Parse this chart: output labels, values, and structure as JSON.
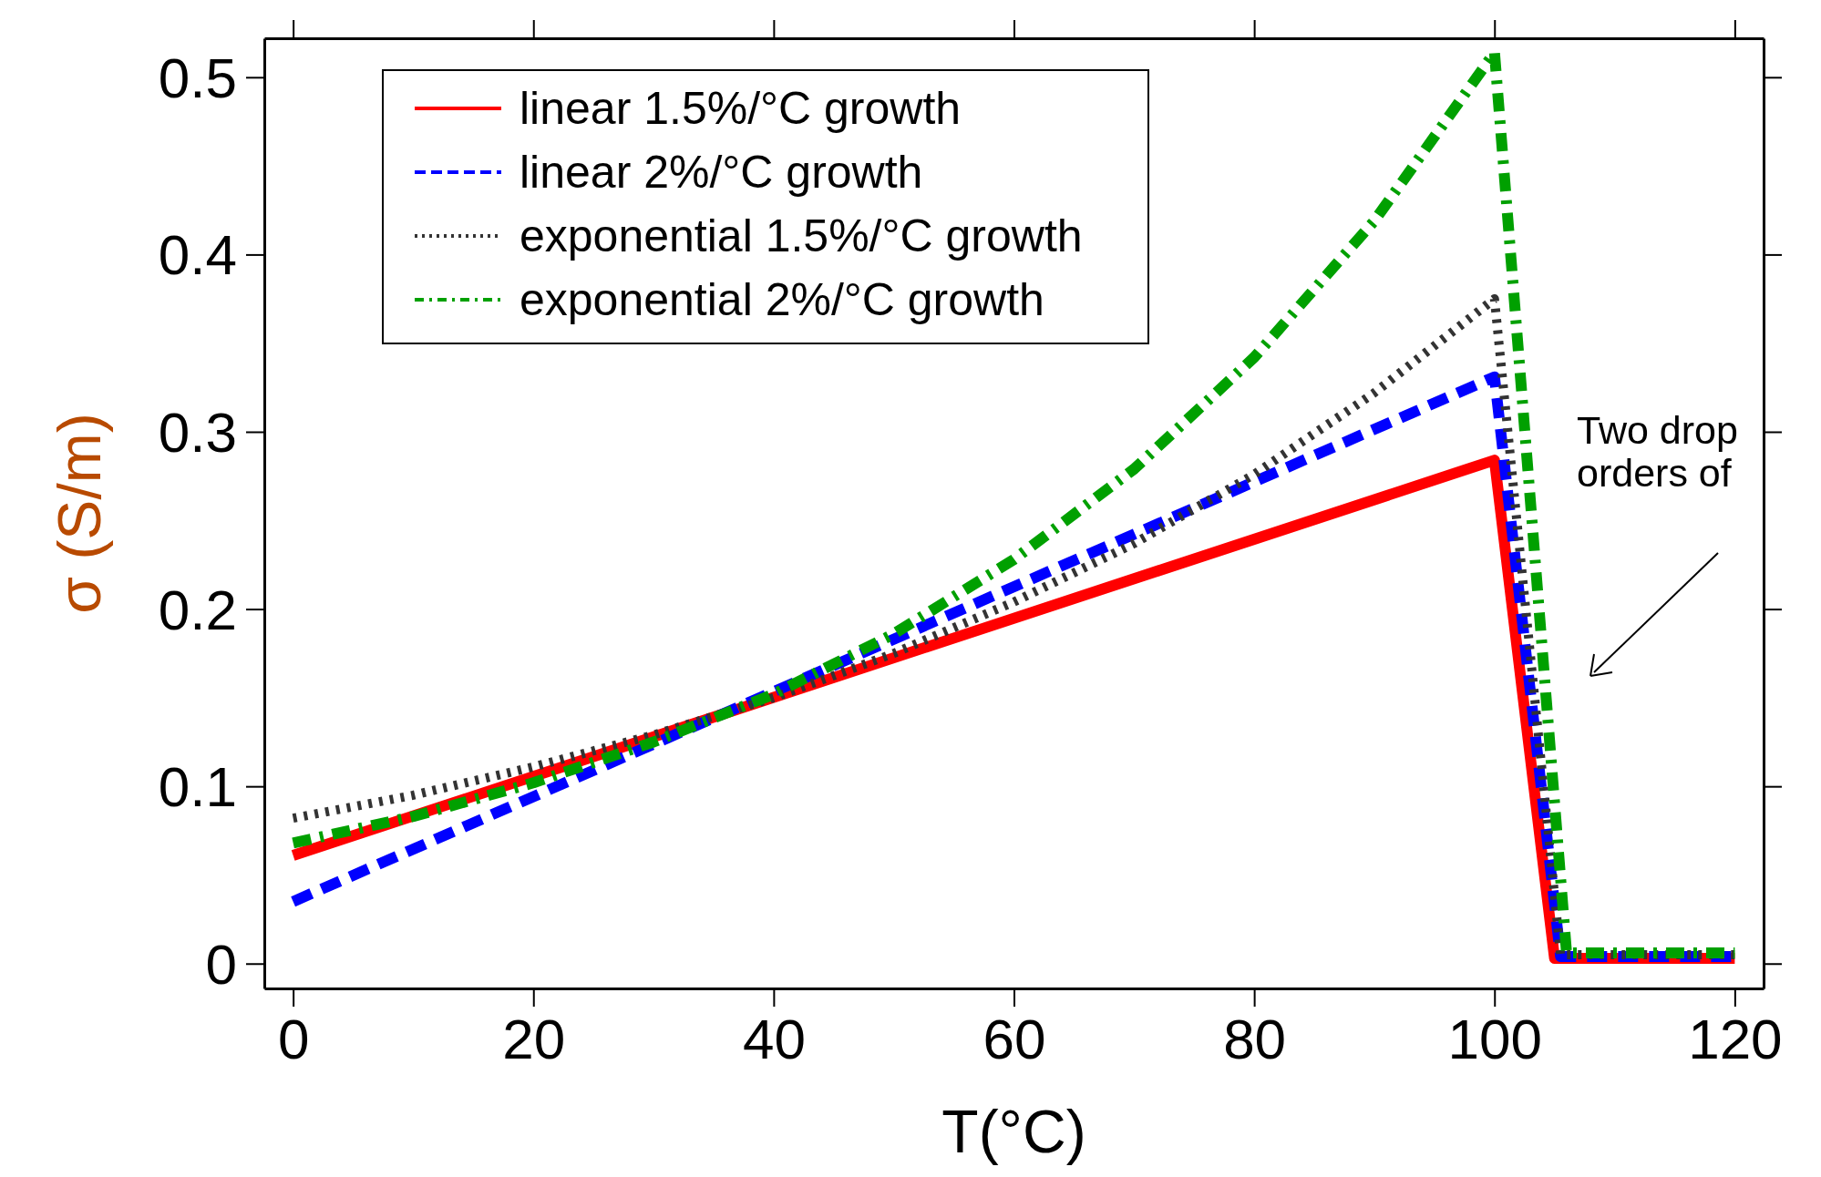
{
  "chart_data": {
    "type": "line",
    "xlabel": "T(°C)",
    "ylabel": "σ (S/m)",
    "xlim": [
      -2.4,
      122.4
    ],
    "ylim": [
      -0.014,
      0.522
    ],
    "xticks": [
      0,
      20,
      40,
      60,
      80,
      100,
      120
    ],
    "yticks": [
      0,
      0.1,
      0.2,
      0.3,
      0.4,
      0.5
    ],
    "grid": false,
    "legend": "top left",
    "series": [
      {
        "name": "linear 1.5%/°C growth",
        "color": "#ff0000",
        "line_style": "solid",
        "x": [
          0,
          100,
          105,
          120
        ],
        "values": [
          0.061,
          0.284,
          0.003,
          0.003
        ]
      },
      {
        "name": "linear 2%/°C growth",
        "color": "#0000ff",
        "line_style": "dashed",
        "x": [
          0,
          100,
          105.5,
          120
        ],
        "values": [
          0.035,
          0.331,
          0.004,
          0.004
        ]
      },
      {
        "name": "exponential 1.5%/°C growth",
        "color": "#333333",
        "line_style": "dotted",
        "x": [
          0,
          10,
          20,
          30,
          40,
          50,
          60,
          70,
          80,
          90,
          100,
          105.5,
          120
        ],
        "values": [
          0.082,
          0.095,
          0.111,
          0.129,
          0.15,
          0.175,
          0.204,
          0.237,
          0.276,
          0.322,
          0.375,
          0.005,
          0.005
        ]
      },
      {
        "name": "exponential 2%/°C growth",
        "color": "#00a000",
        "line_style": "dashdot",
        "x": [
          0,
          10,
          20,
          30,
          40,
          50,
          60,
          70,
          80,
          90,
          100,
          106,
          120
        ],
        "values": [
          0.068,
          0.083,
          0.102,
          0.125,
          0.152,
          0.186,
          0.228,
          0.279,
          0.342,
          0.419,
          0.514,
          0.006,
          0.006
        ]
      }
    ],
    "annotations": [
      "Two drop\norders of"
    ]
  }
}
